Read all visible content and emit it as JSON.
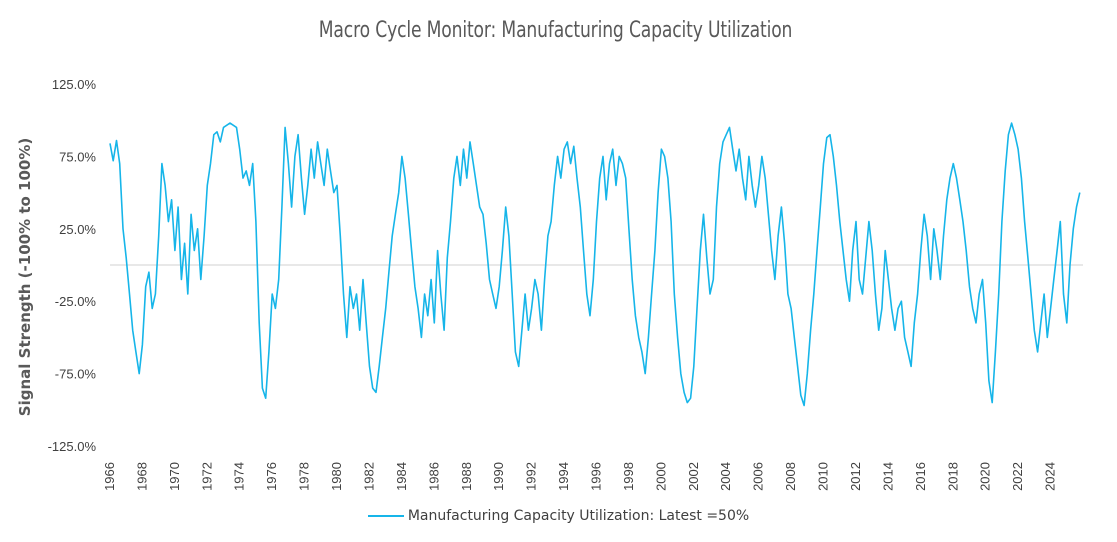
{
  "chart_data": {
    "type": "line",
    "title": "Macro Cycle Monitor: Manufacturing Capacity Utilization",
    "ylabel": "Signal Strength (-100% to 100%)",
    "xlabel": "",
    "ylim": [
      -125,
      125
    ],
    "yticks": [
      "125.0%",
      "75.0%",
      "25.0%",
      "-25.0%",
      "-75.0%",
      "-125.0%"
    ],
    "xlim": [
      1966,
      2026
    ],
    "xticks": [
      "1966",
      "1968",
      "1970",
      "1972",
      "1974",
      "1976",
      "1978",
      "1980",
      "1982",
      "1984",
      "1986",
      "1988",
      "1990",
      "1992",
      "1994",
      "1996",
      "1998",
      "2000",
      "2002",
      "2004",
      "2006",
      "2008",
      "2010",
      "2012",
      "2014",
      "2016",
      "2018",
      "2020",
      "2022",
      "2024"
    ],
    "legend_position": "bottom",
    "grid": false,
    "zero_line": true,
    "series": [
      {
        "name": "Manufacturing Capacity Utilization: Latest =50%",
        "color": "#16b5e9",
        "points": [
          [
            1966.0,
            84
          ],
          [
            1966.2,
            72
          ],
          [
            1966.4,
            86
          ],
          [
            1966.6,
            70
          ],
          [
            1966.8,
            25
          ],
          [
            1967.0,
            5
          ],
          [
            1967.2,
            -20
          ],
          [
            1967.4,
            -45
          ],
          [
            1967.6,
            -60
          ],
          [
            1967.8,
            -75
          ],
          [
            1968.0,
            -55
          ],
          [
            1968.2,
            -15
          ],
          [
            1968.4,
            -5
          ],
          [
            1968.6,
            -30
          ],
          [
            1968.8,
            -20
          ],
          [
            1969.0,
            20
          ],
          [
            1969.2,
            70
          ],
          [
            1969.4,
            55
          ],
          [
            1969.6,
            30
          ],
          [
            1969.8,
            45
          ],
          [
            1970.0,
            10
          ],
          [
            1970.2,
            40
          ],
          [
            1970.4,
            -10
          ],
          [
            1970.6,
            15
          ],
          [
            1970.8,
            -20
          ],
          [
            1971.0,
            35
          ],
          [
            1971.2,
            10
          ],
          [
            1971.4,
            25
          ],
          [
            1971.6,
            -10
          ],
          [
            1971.8,
            20
          ],
          [
            1972.0,
            55
          ],
          [
            1972.2,
            70
          ],
          [
            1972.4,
            90
          ],
          [
            1972.6,
            92
          ],
          [
            1972.8,
            85
          ],
          [
            1973.0,
            95
          ],
          [
            1973.4,
            98
          ],
          [
            1973.8,
            95
          ],
          [
            1974.0,
            80
          ],
          [
            1974.2,
            60
          ],
          [
            1974.4,
            65
          ],
          [
            1974.6,
            55
          ],
          [
            1974.8,
            70
          ],
          [
            1975.0,
            30
          ],
          [
            1975.2,
            -40
          ],
          [
            1975.4,
            -85
          ],
          [
            1975.6,
            -92
          ],
          [
            1975.8,
            -60
          ],
          [
            1976.0,
            -20
          ],
          [
            1976.2,
            -30
          ],
          [
            1976.4,
            -10
          ],
          [
            1976.6,
            40
          ],
          [
            1976.8,
            95
          ],
          [
            1977.0,
            70
          ],
          [
            1977.2,
            40
          ],
          [
            1977.4,
            75
          ],
          [
            1977.6,
            90
          ],
          [
            1977.8,
            60
          ],
          [
            1978.0,
            35
          ],
          [
            1978.2,
            55
          ],
          [
            1978.4,
            80
          ],
          [
            1978.6,
            60
          ],
          [
            1978.8,
            85
          ],
          [
            1979.0,
            70
          ],
          [
            1979.2,
            55
          ],
          [
            1979.4,
            80
          ],
          [
            1979.6,
            65
          ],
          [
            1979.8,
            50
          ],
          [
            1980.0,
            55
          ],
          [
            1980.2,
            20
          ],
          [
            1980.4,
            -20
          ],
          [
            1980.6,
            -50
          ],
          [
            1980.8,
            -15
          ],
          [
            1981.0,
            -30
          ],
          [
            1981.2,
            -20
          ],
          [
            1981.4,
            -45
          ],
          [
            1981.6,
            -10
          ],
          [
            1981.8,
            -40
          ],
          [
            1982.0,
            -70
          ],
          [
            1982.2,
            -85
          ],
          [
            1982.4,
            -88
          ],
          [
            1982.6,
            -70
          ],
          [
            1982.8,
            -50
          ],
          [
            1983.0,
            -30
          ],
          [
            1983.2,
            -5
          ],
          [
            1983.4,
            20
          ],
          [
            1983.6,
            35
          ],
          [
            1983.8,
            50
          ],
          [
            1984.0,
            75
          ],
          [
            1984.2,
            60
          ],
          [
            1984.4,
            35
          ],
          [
            1984.6,
            10
          ],
          [
            1984.8,
            -15
          ],
          [
            1985.0,
            -30
          ],
          [
            1985.2,
            -50
          ],
          [
            1985.4,
            -20
          ],
          [
            1985.6,
            -35
          ],
          [
            1985.8,
            -10
          ],
          [
            1986.0,
            -40
          ],
          [
            1986.2,
            10
          ],
          [
            1986.4,
            -20
          ],
          [
            1986.6,
            -45
          ],
          [
            1986.8,
            5
          ],
          [
            1987.0,
            30
          ],
          [
            1987.2,
            60
          ],
          [
            1987.4,
            75
          ],
          [
            1987.6,
            55
          ],
          [
            1987.8,
            80
          ],
          [
            1988.0,
            60
          ],
          [
            1988.2,
            85
          ],
          [
            1988.4,
            70
          ],
          [
            1988.6,
            55
          ],
          [
            1988.8,
            40
          ],
          [
            1989.0,
            35
          ],
          [
            1989.2,
            15
          ],
          [
            1989.4,
            -10
          ],
          [
            1989.6,
            -20
          ],
          [
            1989.8,
            -30
          ],
          [
            1990.0,
            -15
          ],
          [
            1990.2,
            10
          ],
          [
            1990.4,
            40
          ],
          [
            1990.6,
            20
          ],
          [
            1990.8,
            -20
          ],
          [
            1991.0,
            -60
          ],
          [
            1991.2,
            -70
          ],
          [
            1991.4,
            -45
          ],
          [
            1991.6,
            -20
          ],
          [
            1991.8,
            -45
          ],
          [
            1992.0,
            -30
          ],
          [
            1992.2,
            -10
          ],
          [
            1992.4,
            -20
          ],
          [
            1992.6,
            -45
          ],
          [
            1992.8,
            -10
          ],
          [
            1993.0,
            20
          ],
          [
            1993.2,
            30
          ],
          [
            1993.4,
            55
          ],
          [
            1993.6,
            75
          ],
          [
            1993.8,
            60
          ],
          [
            1994.0,
            80
          ],
          [
            1994.2,
            85
          ],
          [
            1994.4,
            70
          ],
          [
            1994.6,
            82
          ],
          [
            1994.8,
            60
          ],
          [
            1995.0,
            40
          ],
          [
            1995.2,
            10
          ],
          [
            1995.4,
            -20
          ],
          [
            1995.6,
            -35
          ],
          [
            1995.8,
            -10
          ],
          [
            1996.0,
            30
          ],
          [
            1996.2,
            60
          ],
          [
            1996.4,
            75
          ],
          [
            1996.6,
            45
          ],
          [
            1996.8,
            70
          ],
          [
            1997.0,
            80
          ],
          [
            1997.2,
            55
          ],
          [
            1997.4,
            75
          ],
          [
            1997.6,
            70
          ],
          [
            1997.8,
            60
          ],
          [
            1998.0,
            25
          ],
          [
            1998.2,
            -10
          ],
          [
            1998.4,
            -35
          ],
          [
            1998.6,
            -50
          ],
          [
            1998.8,
            -60
          ],
          [
            1999.0,
            -75
          ],
          [
            1999.2,
            -50
          ],
          [
            1999.4,
            -20
          ],
          [
            1999.6,
            10
          ],
          [
            1999.8,
            50
          ],
          [
            2000.0,
            80
          ],
          [
            2000.2,
            75
          ],
          [
            2000.4,
            60
          ],
          [
            2000.6,
            30
          ],
          [
            2000.8,
            -20
          ],
          [
            2001.0,
            -50
          ],
          [
            2001.2,
            -75
          ],
          [
            2001.4,
            -88
          ],
          [
            2001.6,
            -95
          ],
          [
            2001.8,
            -92
          ],
          [
            2002.0,
            -70
          ],
          [
            2002.2,
            -30
          ],
          [
            2002.4,
            10
          ],
          [
            2002.6,
            35
          ],
          [
            2002.8,
            5
          ],
          [
            2003.0,
            -20
          ],
          [
            2003.2,
            -10
          ],
          [
            2003.4,
            40
          ],
          [
            2003.6,
            70
          ],
          [
            2003.8,
            85
          ],
          [
            2004.0,
            90
          ],
          [
            2004.2,
            95
          ],
          [
            2004.4,
            80
          ],
          [
            2004.6,
            65
          ],
          [
            2004.8,
            80
          ],
          [
            2005.0,
            60
          ],
          [
            2005.2,
            45
          ],
          [
            2005.4,
            75
          ],
          [
            2005.6,
            55
          ],
          [
            2005.8,
            40
          ],
          [
            2006.0,
            55
          ],
          [
            2006.2,
            75
          ],
          [
            2006.4,
            60
          ],
          [
            2006.6,
            35
          ],
          [
            2006.8,
            10
          ],
          [
            2007.0,
            -10
          ],
          [
            2007.2,
            20
          ],
          [
            2007.4,
            40
          ],
          [
            2007.6,
            15
          ],
          [
            2007.8,
            -20
          ],
          [
            2008.0,
            -30
          ],
          [
            2008.2,
            -50
          ],
          [
            2008.4,
            -70
          ],
          [
            2008.6,
            -90
          ],
          [
            2008.8,
            -97
          ],
          [
            2009.0,
            -75
          ],
          [
            2009.2,
            -45
          ],
          [
            2009.4,
            -20
          ],
          [
            2009.6,
            10
          ],
          [
            2009.8,
            40
          ],
          [
            2010.0,
            70
          ],
          [
            2010.2,
            88
          ],
          [
            2010.4,
            90
          ],
          [
            2010.6,
            75
          ],
          [
            2010.8,
            55
          ],
          [
            2011.0,
            30
          ],
          [
            2011.2,
            10
          ],
          [
            2011.4,
            -10
          ],
          [
            2011.6,
            -25
          ],
          [
            2011.8,
            10
          ],
          [
            2012.0,
            30
          ],
          [
            2012.2,
            -10
          ],
          [
            2012.4,
            -20
          ],
          [
            2012.6,
            5
          ],
          [
            2012.8,
            30
          ],
          [
            2013.0,
            10
          ],
          [
            2013.2,
            -20
          ],
          [
            2013.4,
            -45
          ],
          [
            2013.6,
            -30
          ],
          [
            2013.8,
            10
          ],
          [
            2014.0,
            -10
          ],
          [
            2014.2,
            -30
          ],
          [
            2014.4,
            -45
          ],
          [
            2014.6,
            -30
          ],
          [
            2014.8,
            -25
          ],
          [
            2015.0,
            -50
          ],
          [
            2015.2,
            -60
          ],
          [
            2015.4,
            -70
          ],
          [
            2015.6,
            -40
          ],
          [
            2015.8,
            -20
          ],
          [
            2016.0,
            10
          ],
          [
            2016.2,
            35
          ],
          [
            2016.4,
            20
          ],
          [
            2016.6,
            -10
          ],
          [
            2016.8,
            25
          ],
          [
            2017.0,
            10
          ],
          [
            2017.2,
            -10
          ],
          [
            2017.4,
            20
          ],
          [
            2017.6,
            45
          ],
          [
            2017.8,
            60
          ],
          [
            2018.0,
            70
          ],
          [
            2018.2,
            60
          ],
          [
            2018.4,
            45
          ],
          [
            2018.6,
            30
          ],
          [
            2018.8,
            10
          ],
          [
            2019.0,
            -15
          ],
          [
            2019.2,
            -30
          ],
          [
            2019.4,
            -40
          ],
          [
            2019.6,
            -20
          ],
          [
            2019.8,
            -10
          ],
          [
            2020.0,
            -40
          ],
          [
            2020.2,
            -80
          ],
          [
            2020.4,
            -95
          ],
          [
            2020.6,
            -60
          ],
          [
            2020.8,
            -20
          ],
          [
            2021.0,
            30
          ],
          [
            2021.2,
            65
          ],
          [
            2021.4,
            90
          ],
          [
            2021.6,
            98
          ],
          [
            2021.8,
            90
          ],
          [
            2022.0,
            80
          ],
          [
            2022.2,
            60
          ],
          [
            2022.4,
            30
          ],
          [
            2022.6,
            5
          ],
          [
            2022.8,
            -20
          ],
          [
            2023.0,
            -45
          ],
          [
            2023.2,
            -60
          ],
          [
            2023.4,
            -40
          ],
          [
            2023.6,
            -20
          ],
          [
            2023.8,
            -50
          ],
          [
            2024.0,
            -30
          ],
          [
            2024.2,
            -10
          ],
          [
            2024.4,
            10
          ],
          [
            2024.6,
            30
          ],
          [
            2024.8,
            -20
          ],
          [
            2025.0,
            -40
          ],
          [
            2025.2,
            0
          ],
          [
            2025.4,
            25
          ],
          [
            2025.6,
            40
          ],
          [
            2025.8,
            50
          ]
        ]
      }
    ]
  },
  "legend": {
    "label": "Manufacturing Capacity Utilization: Latest =50%"
  }
}
